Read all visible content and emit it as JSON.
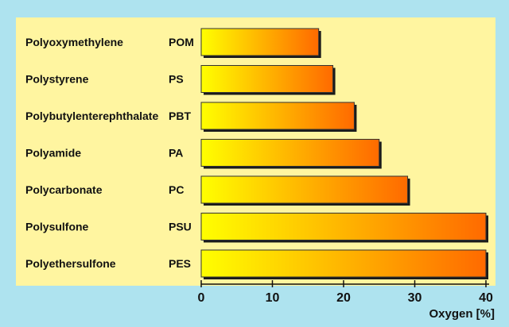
{
  "chart_data": {
    "type": "bar",
    "orientation": "horizontal",
    "categories": [
      "Polyoxymethylene",
      "Polystyrene",
      "Polybutylenterephthalate",
      "Polyamide",
      "Polycarbonate",
      "Polysulfone",
      "Polyethersulfone"
    ],
    "abbreviations": [
      "POM",
      "PS",
      "PBT",
      "PA",
      "PC",
      "PSU",
      "PES"
    ],
    "values": [
      16.5,
      18.5,
      21.5,
      25,
      29,
      40,
      40
    ],
    "title": "",
    "xlabel": "Oxygen [%]",
    "ylabel": "",
    "xlim": [
      0,
      40
    ],
    "xticks": [
      0,
      10,
      20,
      30,
      40
    ],
    "tick_labels": [
      "0",
      "10",
      "20",
      "30",
      "40"
    ],
    "grid": false,
    "colors": {
      "page_background": "#aee3ef",
      "panel_background": "#fff5a0",
      "bar_gradient_start": "#ffff00",
      "bar_gradient_end": "#ff6a00",
      "bar_outline": "#333333",
      "bar_shadow": "#1a1a1a"
    }
  }
}
